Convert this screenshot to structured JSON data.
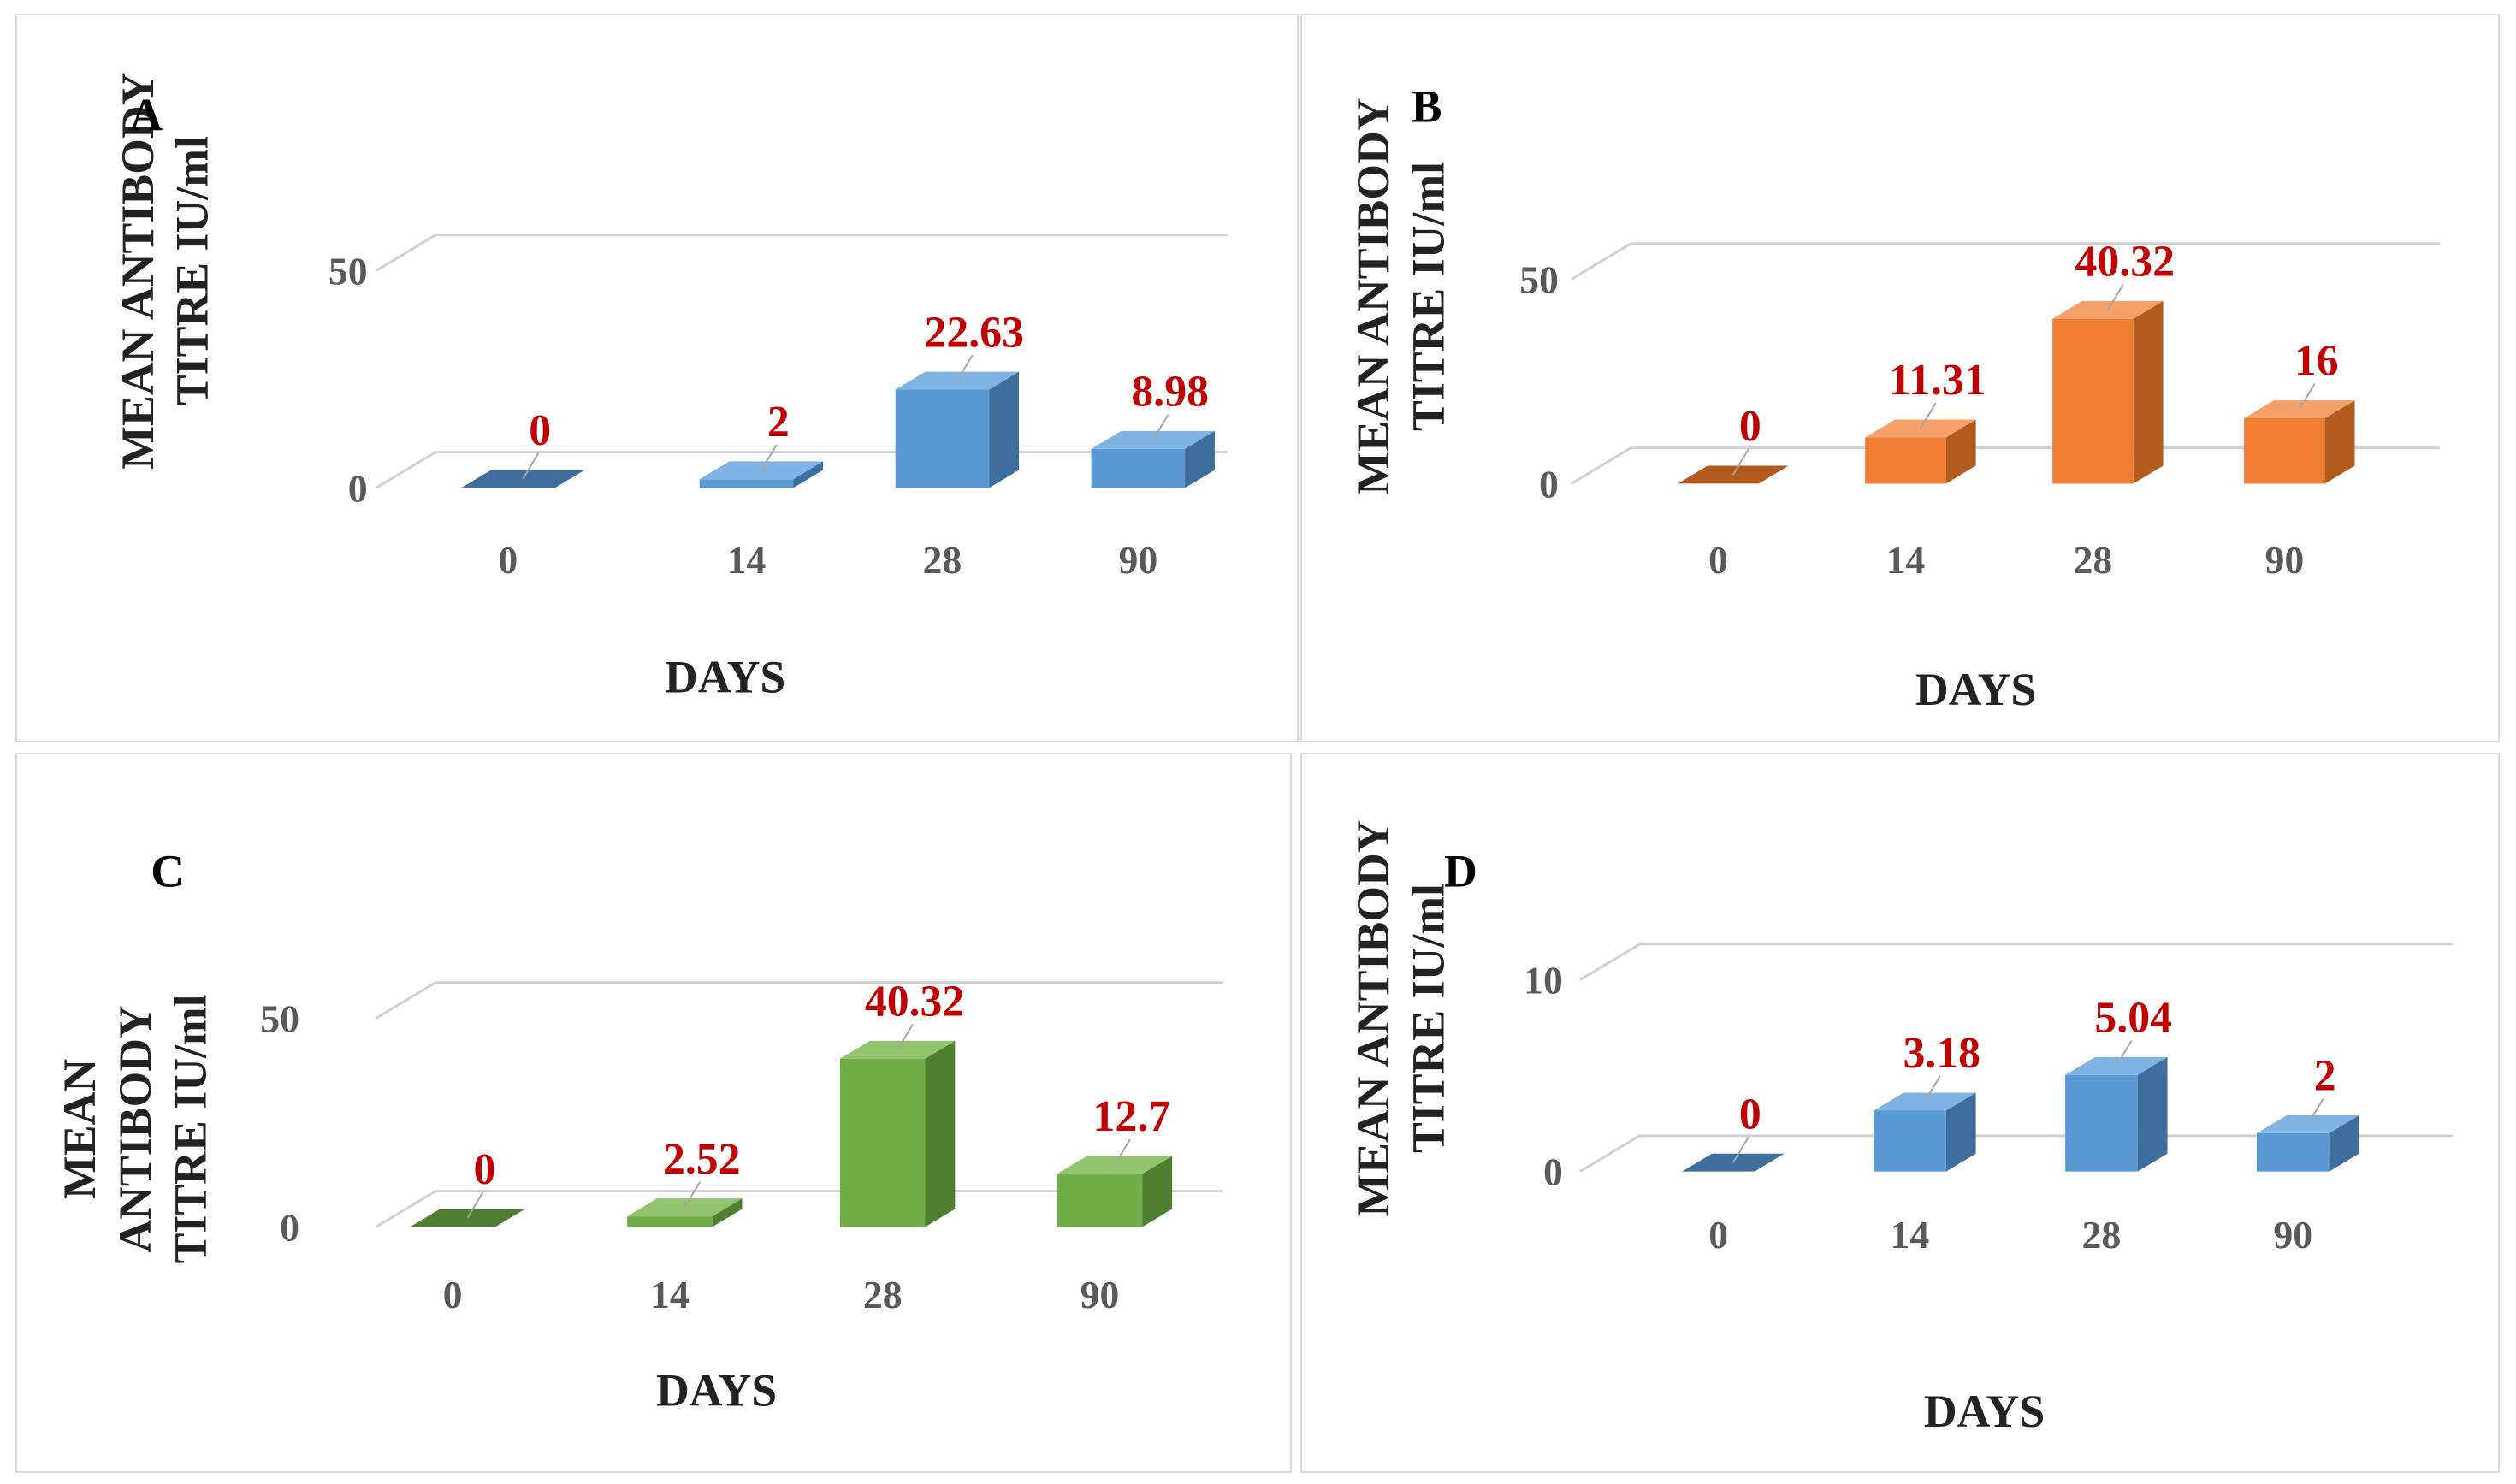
{
  "chart_data": [
    {
      "type": "bar",
      "panel_label": "A",
      "categories": [
        "0",
        "14",
        "28",
        "90"
      ],
      "values": [
        0,
        2,
        22.63,
        8.98
      ],
      "value_labels": [
        "0",
        "2",
        "22.63",
        "8.98"
      ],
      "xlabel": "DAYS",
      "ylabel_lines": [
        "MEAN ANTIBODY",
        "TITRE IU/ml"
      ],
      "yticks": [
        "0",
        "50"
      ],
      "ylim": [
        0,
        50
      ],
      "colors": {
        "front": "#5b9bd5",
        "top": "#7fb3e3",
        "side": "#3d6e9c"
      }
    },
    {
      "type": "bar",
      "panel_label": "B",
      "categories": [
        "0",
        "14",
        "28",
        "90"
      ],
      "values": [
        0,
        11.31,
        40.32,
        16
      ],
      "value_labels": [
        "0",
        "11.31",
        "40.32",
        "16"
      ],
      "xlabel": "DAYS",
      "ylabel_lines": [
        "MEAN ANTIBODY",
        "TITRE IU/ml"
      ],
      "yticks": [
        "0",
        "50"
      ],
      "ylim": [
        0,
        50
      ],
      "colors": {
        "front": "#ed7d31",
        "top": "#f4a068",
        "side": "#b35a1f"
      }
    },
    {
      "type": "bar",
      "panel_label": "C",
      "categories": [
        "0",
        "14",
        "28",
        "90"
      ],
      "values": [
        0,
        2.52,
        40.32,
        12.7
      ],
      "value_labels": [
        "0",
        "2.52",
        "40.32",
        "12.7"
      ],
      "xlabel": "DAYS",
      "ylabel_lines": [
        "MEAN",
        "ANTIBODY",
        "TITRE IU/ml"
      ],
      "yticks": [
        "0",
        "50"
      ],
      "ylim": [
        0,
        50
      ],
      "colors": {
        "front": "#70ad47",
        "top": "#92c46f",
        "side": "#4e7f30"
      }
    },
    {
      "type": "bar",
      "panel_label": "D",
      "categories": [
        "0",
        "14",
        "28",
        "90"
      ],
      "values": [
        0,
        3.18,
        5.04,
        2
      ],
      "value_labels": [
        "0",
        "3.18",
        "5.04",
        "2"
      ],
      "xlabel": "DAYS",
      "ylabel_lines": [
        "MEAN ANTIBODY",
        "TITRE IU/ml"
      ],
      "yticks": [
        "0",
        "10"
      ],
      "ylim": [
        0,
        10
      ],
      "colors": {
        "front": "#5b9bd5",
        "top": "#7fb3e3",
        "side": "#3d6e9c"
      }
    }
  ]
}
